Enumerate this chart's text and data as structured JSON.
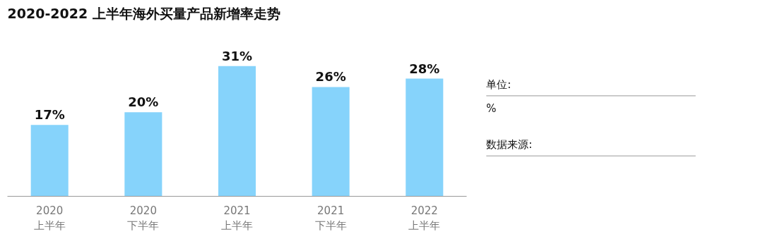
{
  "chart_data": {
    "type": "bar",
    "title": "2020-2022 上半年海外买量产品新增率走势",
    "categories": [
      "2020\n上半年",
      "2020\n下半年",
      "2021\n上半年",
      "2021\n下半年",
      "2022\n上半年"
    ],
    "values": [
      17,
      20,
      31,
      26,
      28
    ],
    "value_labels": [
      "17%",
      "20%",
      "31%",
      "26%",
      "28%"
    ],
    "color": "#86d3fb",
    "annotations": [
      "单位:",
      "%",
      "数据来源:"
    ]
  }
}
